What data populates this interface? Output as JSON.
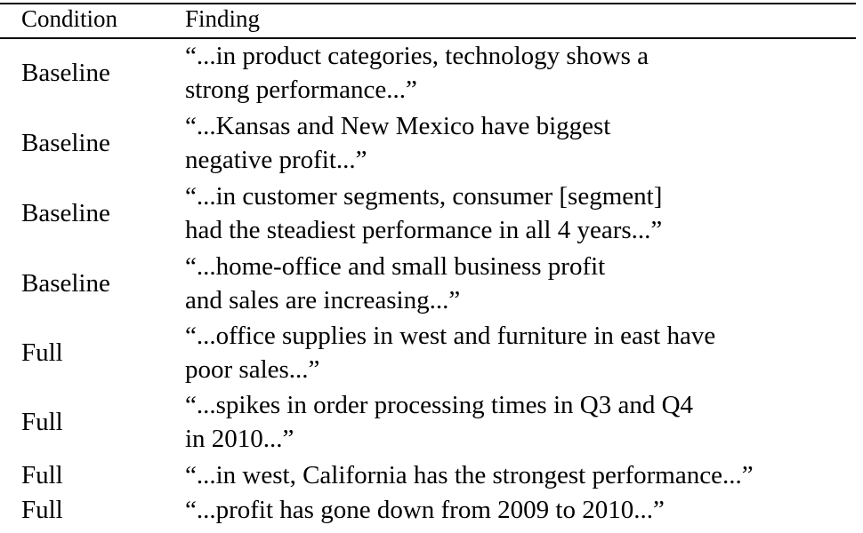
{
  "table": {
    "headers": [
      "Condition",
      "Finding"
    ],
    "rows": [
      {
        "condition": "Baseline",
        "finding": [
          "“...in product categories, technology shows a",
          "strong performance...”"
        ]
      },
      {
        "condition": "Baseline",
        "finding": [
          "“...Kansas and New Mexico have biggest",
          "negative profit...”"
        ]
      },
      {
        "condition": "Baseline",
        "finding": [
          "“...in customer segments, consumer [segment]",
          "had the steadiest performance in all 4 years...”"
        ]
      },
      {
        "condition": "Baseline",
        "finding": [
          "“...home-office and small business profit",
          "and sales are increasing...”"
        ]
      },
      {
        "condition": "Full",
        "finding": [
          "“...office supplies in west and furniture in east have",
          "poor sales...”"
        ]
      },
      {
        "condition": "Full",
        "finding": [
          "“...spikes in order processing times in Q3 and Q4",
          "in 2010...”"
        ]
      },
      {
        "condition": "Full",
        "finding": [
          "“...in west, California has the strongest performance...”"
        ]
      },
      {
        "condition": "Full",
        "finding": [
          "“...profit has gone down from 2009 to 2010...”"
        ]
      }
    ]
  }
}
